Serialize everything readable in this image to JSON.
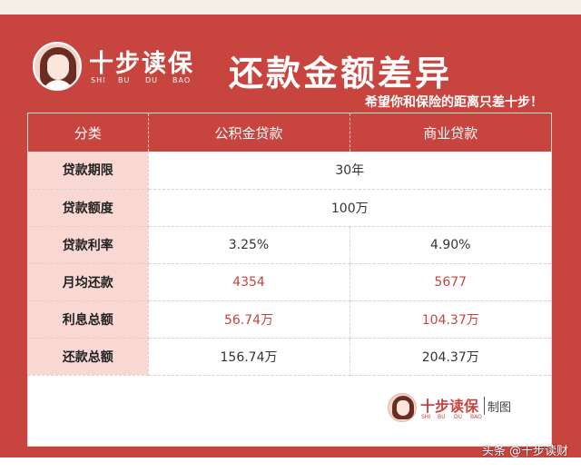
{
  "brand": {
    "name": "十步读保",
    "pinyin": [
      "SHI",
      "BU",
      "DU",
      "BAO"
    ]
  },
  "title": "还款金额差异",
  "slogan": "希望你和保险的距离只差十步！",
  "table": {
    "headers": [
      "分类",
      "公积金贷款",
      "商业贷款"
    ],
    "rows": [
      {
        "label": "贷款期限",
        "merged": "30年"
      },
      {
        "label": "贷款额度",
        "merged": "100万"
      },
      {
        "label": "贷款利率",
        "gjj": "3.25%",
        "sy": "4.90%"
      },
      {
        "label": "月均还款",
        "gjj": "4354",
        "sy": "5677"
      },
      {
        "label": "利息总额",
        "gjj": "56.74万",
        "sy": "104.37万"
      },
      {
        "label": "还款总额",
        "gjj": "156.74万",
        "sy": "204.37万"
      }
    ]
  },
  "footer": {
    "brand": "十步读保",
    "pinyin": [
      "SHI",
      "BU",
      "DU",
      "BAO"
    ],
    "made_by": "制图"
  },
  "watermark": "头条 @十步读财",
  "colors": {
    "accent": "#c8443f",
    "label_bg": "#f9d8d4",
    "highlight_text": "#c8443f"
  }
}
